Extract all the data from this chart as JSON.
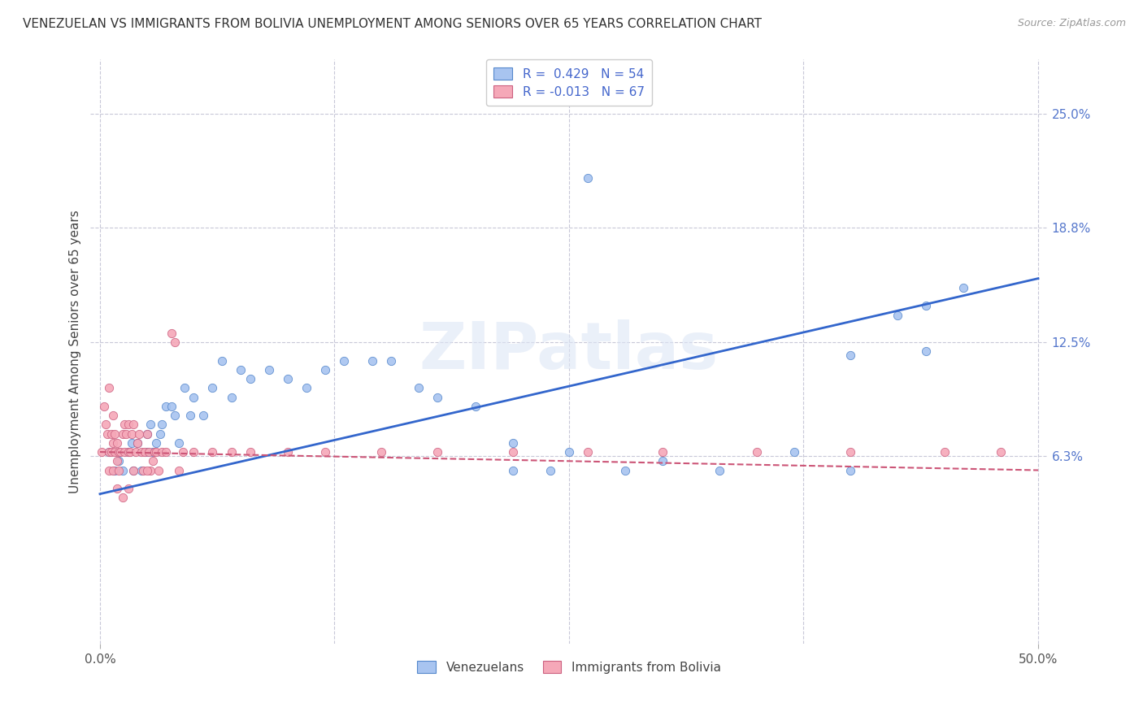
{
  "title": "VENEZUELAN VS IMMIGRANTS FROM BOLIVIA UNEMPLOYMENT AMONG SENIORS OVER 65 YEARS CORRELATION CHART",
  "source": "Source: ZipAtlas.com",
  "ylabel": "Unemployment Among Seniors over 65 years",
  "right_yticks": [
    0.063,
    0.125,
    0.188,
    0.25
  ],
  "right_ytick_labels": [
    "6.3%",
    "12.5%",
    "18.8%",
    "25.0%"
  ],
  "xlim": [
    -0.005,
    0.505
  ],
  "ylim": [
    -0.04,
    0.28
  ],
  "venezuelan_color": "#a8c4f0",
  "venezuelan_edge": "#5588cc",
  "bolivia_color": "#f5a8b8",
  "bolivia_edge": "#cc6080",
  "trend_blue": "#3366cc",
  "trend_pink": "#cc5577",
  "legend_R_blue": "0.429",
  "legend_N_blue": "54",
  "legend_R_pink": "-0.013",
  "legend_N_pink": "67",
  "watermark": "ZIPatlas",
  "title_fontsize": 11,
  "source_fontsize": 9,
  "axis_label_fontsize": 11,
  "tick_fontsize": 11,
  "legend_fontsize": 11,
  "ven_x": [
    0.005,
    0.008,
    0.01,
    0.012,
    0.015,
    0.017,
    0.018,
    0.02,
    0.022,
    0.025,
    0.025,
    0.027,
    0.028,
    0.03,
    0.032,
    0.033,
    0.035,
    0.038,
    0.04,
    0.042,
    0.045,
    0.048,
    0.05,
    0.055,
    0.06,
    0.065,
    0.07,
    0.075,
    0.08,
    0.09,
    0.1,
    0.11,
    0.12,
    0.13,
    0.145,
    0.155,
    0.17,
    0.18,
    0.2,
    0.22,
    0.24,
    0.26,
    0.28,
    0.3,
    0.33,
    0.37,
    0.4,
    0.425,
    0.44,
    0.46,
    0.22,
    0.25,
    0.4,
    0.44
  ],
  "ven_y": [
    0.065,
    0.055,
    0.06,
    0.055,
    0.065,
    0.07,
    0.055,
    0.07,
    0.055,
    0.075,
    0.065,
    0.08,
    0.065,
    0.07,
    0.075,
    0.08,
    0.09,
    0.09,
    0.085,
    0.07,
    0.1,
    0.085,
    0.095,
    0.085,
    0.1,
    0.115,
    0.095,
    0.11,
    0.105,
    0.11,
    0.105,
    0.1,
    0.11,
    0.115,
    0.115,
    0.115,
    0.1,
    0.095,
    0.09,
    0.07,
    0.055,
    0.215,
    0.055,
    0.06,
    0.055,
    0.065,
    0.055,
    0.14,
    0.12,
    0.155,
    0.055,
    0.065,
    0.118,
    0.145
  ],
  "bol_x": [
    0.001,
    0.002,
    0.003,
    0.004,
    0.005,
    0.005,
    0.006,
    0.006,
    0.007,
    0.007,
    0.008,
    0.008,
    0.009,
    0.009,
    0.01,
    0.01,
    0.011,
    0.012,
    0.013,
    0.013,
    0.014,
    0.015,
    0.015,
    0.016,
    0.017,
    0.018,
    0.019,
    0.02,
    0.021,
    0.022,
    0.023,
    0.024,
    0.025,
    0.026,
    0.027,
    0.028,
    0.029,
    0.03,
    0.031,
    0.033,
    0.035,
    0.038,
    0.04,
    0.042,
    0.044,
    0.05,
    0.06,
    0.07,
    0.08,
    0.1,
    0.12,
    0.15,
    0.18,
    0.22,
    0.26,
    0.3,
    0.35,
    0.4,
    0.45,
    0.48,
    0.005,
    0.007,
    0.009,
    0.012,
    0.015,
    0.018,
    0.025
  ],
  "bol_y": [
    0.065,
    0.09,
    0.08,
    0.075,
    0.065,
    0.055,
    0.065,
    0.075,
    0.07,
    0.055,
    0.075,
    0.065,
    0.06,
    0.07,
    0.065,
    0.055,
    0.065,
    0.075,
    0.065,
    0.08,
    0.075,
    0.065,
    0.08,
    0.065,
    0.075,
    0.08,
    0.065,
    0.07,
    0.075,
    0.065,
    0.055,
    0.065,
    0.075,
    0.065,
    0.055,
    0.06,
    0.065,
    0.065,
    0.055,
    0.065,
    0.065,
    0.13,
    0.125,
    0.055,
    0.065,
    0.065,
    0.065,
    0.065,
    0.065,
    0.065,
    0.065,
    0.065,
    0.065,
    0.065,
    0.065,
    0.065,
    0.065,
    0.065,
    0.065,
    0.065,
    0.1,
    0.085,
    0.045,
    0.04,
    0.045,
    0.055,
    0.055
  ],
  "ven_trend_x": [
    0.0,
    0.5
  ],
  "ven_trend_y": [
    0.042,
    0.16
  ],
  "bol_trend_x": [
    0.0,
    0.5
  ],
  "bol_trend_y": [
    0.065,
    0.055
  ]
}
